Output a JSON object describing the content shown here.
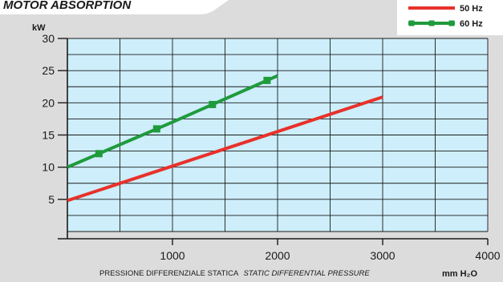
{
  "chart_data": {
    "type": "line",
    "title": "MOTOR ABSORPTION",
    "ylabel": "kW",
    "xlabel": "PRESSIONE DIFFERENZIALE STATICA",
    "xlabel_italic": "STATIC DIFFERENTIAL PRESSURE",
    "xunit": "mm H₂O",
    "xlim": [
      0,
      4000
    ],
    "ylim": [
      0,
      30
    ],
    "x_ticks": [
      1000,
      2000,
      3000,
      4000
    ],
    "y_ticks": [
      5,
      10,
      15,
      20,
      25,
      30
    ],
    "grid": true,
    "legend_position": "top-right",
    "series": [
      {
        "name": "50 Hz",
        "color": "#e8312a",
        "marker": "none",
        "points": [
          [
            0,
            4.8
          ],
          [
            3000,
            20.9
          ]
        ]
      },
      {
        "name": "60 Hz",
        "color": "#1f9a3c",
        "marker": "square",
        "points": [
          [
            0,
            10.0
          ],
          [
            1000,
            17.0
          ],
          [
            2000,
            24.2
          ]
        ],
        "markers_x": [
          300,
          850,
          1380,
          1900
        ]
      }
    ],
    "colors": {
      "plot_background": "#cdeefa",
      "grid": "#1a1a1a",
      "page_background": "#dcdcdc"
    }
  }
}
